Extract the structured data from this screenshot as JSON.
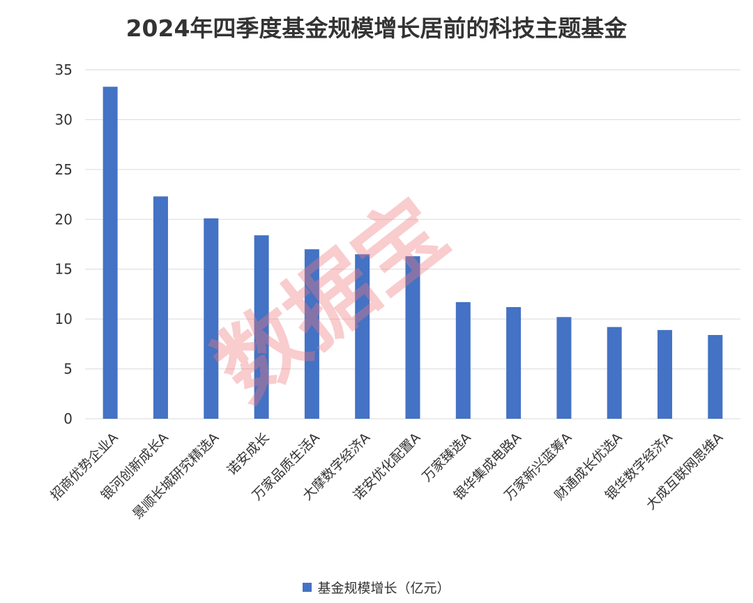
{
  "watermark": "数据宝",
  "colors": {
    "bar": "#4472C4",
    "grid": "#d9d9d9",
    "text": "#333333"
  },
  "chart_data": {
    "type": "bar",
    "title": "2024年四季度基金规模增长居前的科技主题基金",
    "xlabel": "",
    "ylabel": "",
    "ylim": [
      0,
      35
    ],
    "yticks": [
      0,
      5,
      10,
      15,
      20,
      25,
      30,
      35
    ],
    "grid": true,
    "legend_position": "bottom",
    "categories": [
      "招商优势企业A",
      "银河创新成长A",
      "景顺长城研究精选A",
      "诺安成长",
      "万家品质生活A",
      "大摩数字经济A",
      "诺安优化配置A",
      "万家臻选A",
      "银华集成电路A",
      "万家新兴蓝筹A",
      "财通成长优选A",
      "银华数字经济A",
      "大成互联网思维A"
    ],
    "series": [
      {
        "name": "基金规模增长（亿元）",
        "values": [
          33.3,
          22.3,
          20.1,
          18.4,
          17.0,
          16.5,
          16.3,
          11.7,
          11.2,
          10.2,
          9.2,
          8.9,
          8.4
        ]
      }
    ]
  }
}
